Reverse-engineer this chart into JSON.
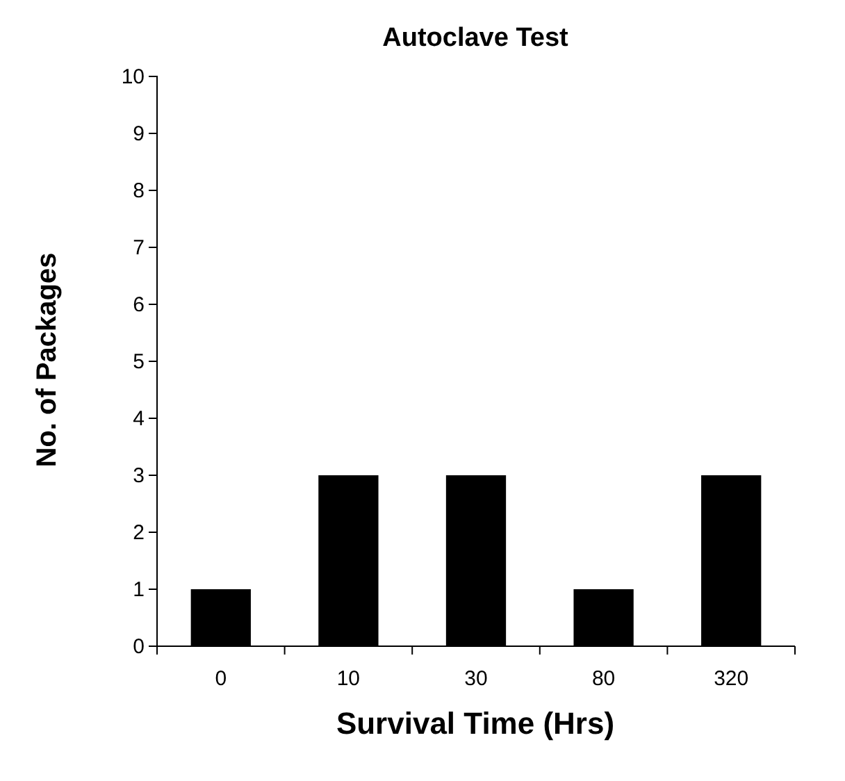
{
  "chart_data": {
    "type": "bar",
    "title": "Autoclave Test",
    "xlabel": "Survival Time (Hrs)",
    "ylabel": "No. of Packages",
    "categories": [
      "0",
      "10",
      "30",
      "80",
      "320"
    ],
    "values": [
      1,
      3,
      3,
      1,
      3
    ],
    "color": "#000000",
    "ylim": [
      0,
      10
    ],
    "yticks": [
      0,
      1,
      2,
      3,
      4,
      5,
      6,
      7,
      8,
      9,
      10
    ],
    "grid": false,
    "legend": false
  }
}
